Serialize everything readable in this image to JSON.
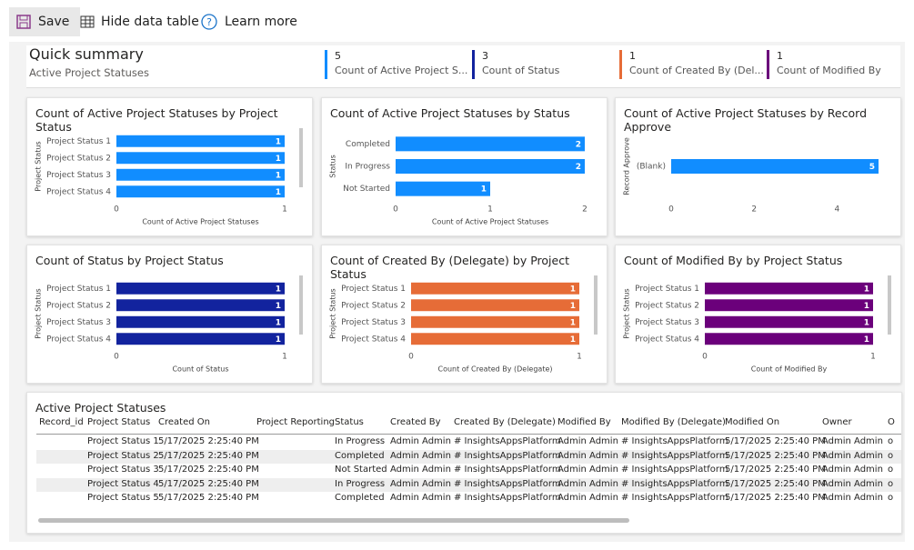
{
  "toolbar": {
    "save": "Save",
    "hide_table": "Hide data table",
    "learn_more": "Learn more"
  },
  "summary": {
    "title": "Quick summary",
    "subtitle": "Active Project Statuses",
    "cards": [
      {
        "value": 5,
        "label": "Count of Active Project S...",
        "color": "#118DFF"
      },
      {
        "value": 3,
        "label": "Count of Status",
        "color": "#12239E"
      },
      {
        "value": 1,
        "label": "Count of Created By (Del...",
        "color": "#E66C37"
      },
      {
        "value": 1,
        "label": "Count of Modified By",
        "color": "#6B007B"
      }
    ]
  },
  "chart_data": [
    {
      "type": "hbar",
      "title": "Count of Active Project Statuses by Project Status",
      "y_label": "Project Status",
      "x_label": "Count of Active Project Statuses",
      "categories": [
        "Project Status 1",
        "Project Status 2",
        "Project Status 3",
        "Project Status 4"
      ],
      "values": [
        1,
        1,
        1,
        1
      ],
      "color": "#118DFF",
      "xlim": [
        0,
        1
      ],
      "xticks": [
        0,
        1
      ]
    },
    {
      "type": "hbar",
      "title": "Count of Active Project Statuses by Status",
      "y_label": "Status",
      "x_label": "Count of Active Project Statuses",
      "categories": [
        "Completed",
        "In Progress",
        "Not Started"
      ],
      "values": [
        2,
        2,
        1
      ],
      "color": "#118DFF",
      "xlim": [
        0,
        2
      ],
      "xticks": [
        0,
        1,
        2
      ]
    },
    {
      "type": "hbar",
      "title": "Count of Active Project Statuses by Record Approve",
      "y_label": "Record Approve",
      "categories": [
        "(Blank)"
      ],
      "values": [
        5
      ],
      "color": "#118DFF",
      "xlim": [
        0,
        5
      ],
      "xticks": [
        0,
        2,
        4
      ]
    },
    {
      "type": "hbar",
      "title": "Count of Status by Project Status",
      "y_label": "Project Status",
      "x_label": "Count of Status",
      "categories": [
        "Project Status 1",
        "Project Status 2",
        "Project Status 3",
        "Project Status 4"
      ],
      "values": [
        1,
        1,
        1,
        1
      ],
      "color": "#12239E",
      "xlim": [
        0,
        1
      ],
      "xticks": [
        0,
        1
      ]
    },
    {
      "type": "hbar",
      "title": "Count of Created By (Delegate) by Project Status",
      "y_label": "Project Status",
      "x_label": "Count of Created By (Delegate)",
      "categories": [
        "Project Status 1",
        "Project Status 2",
        "Project Status 3",
        "Project Status 4"
      ],
      "values": [
        1,
        1,
        1,
        1
      ],
      "color": "#E66C37",
      "xlim": [
        0,
        1
      ],
      "xticks": [
        0,
        1
      ]
    },
    {
      "type": "hbar",
      "title": "Count of Modified By by Project Status",
      "y_label": "Project Status",
      "x_label": "Count of Modified By",
      "categories": [
        "Project Status 1",
        "Project Status 2",
        "Project Status 3",
        "Project Status 4"
      ],
      "values": [
        1,
        1,
        1,
        1
      ],
      "color": "#6B007B",
      "xlim": [
        0,
        1
      ],
      "xticks": [
        0,
        1
      ]
    }
  ],
  "table": {
    "title": "Active Project Statuses",
    "columns": [
      "Record_id",
      "Project Status",
      "Created On",
      "Project Reporting",
      "Status",
      "Created By",
      "Created By (Delegate)",
      "Modified By",
      "Modified By (Delegate)",
      "Modified On",
      "Owner",
      "O"
    ],
    "rows": [
      [
        null,
        "Project Status 1",
        "5/17/2025 2:25:40 PM",
        null,
        "In Progress",
        "Admin Admin",
        "# InsightsAppsPlatform",
        "Admin Admin",
        "# InsightsAppsPlatform",
        "5/17/2025 2:25:40 PM",
        "Admin Admin",
        "o"
      ],
      [
        null,
        "Project Status 2",
        "5/17/2025 2:25:40 PM",
        null,
        "Completed",
        "Admin Admin",
        "# InsightsAppsPlatform",
        "Admin Admin",
        "# InsightsAppsPlatform",
        "5/17/2025 2:25:40 PM",
        "Admin Admin",
        "o"
      ],
      [
        null,
        "Project Status 3",
        "5/17/2025 2:25:40 PM",
        null,
        "Not Started",
        "Admin Admin",
        "# InsightsAppsPlatform",
        "Admin Admin",
        "# InsightsAppsPlatform",
        "5/17/2025 2:25:40 PM",
        "Admin Admin",
        "o"
      ],
      [
        null,
        "Project Status 4",
        "5/17/2025 2:25:40 PM",
        null,
        "In Progress",
        "Admin Admin",
        "# InsightsAppsPlatform",
        "Admin Admin",
        "# InsightsAppsPlatform",
        "5/17/2025 2:25:40 PM",
        "Admin Admin",
        "o"
      ],
      [
        null,
        "Project Status 5",
        "5/17/2025 2:25:40 PM",
        null,
        "Completed",
        "Admin Admin",
        "# InsightsAppsPlatform",
        "Admin Admin",
        "# InsightsAppsPlatform",
        "5/17/2025 2:25:40 PM",
        "Admin Admin",
        "o"
      ]
    ]
  }
}
